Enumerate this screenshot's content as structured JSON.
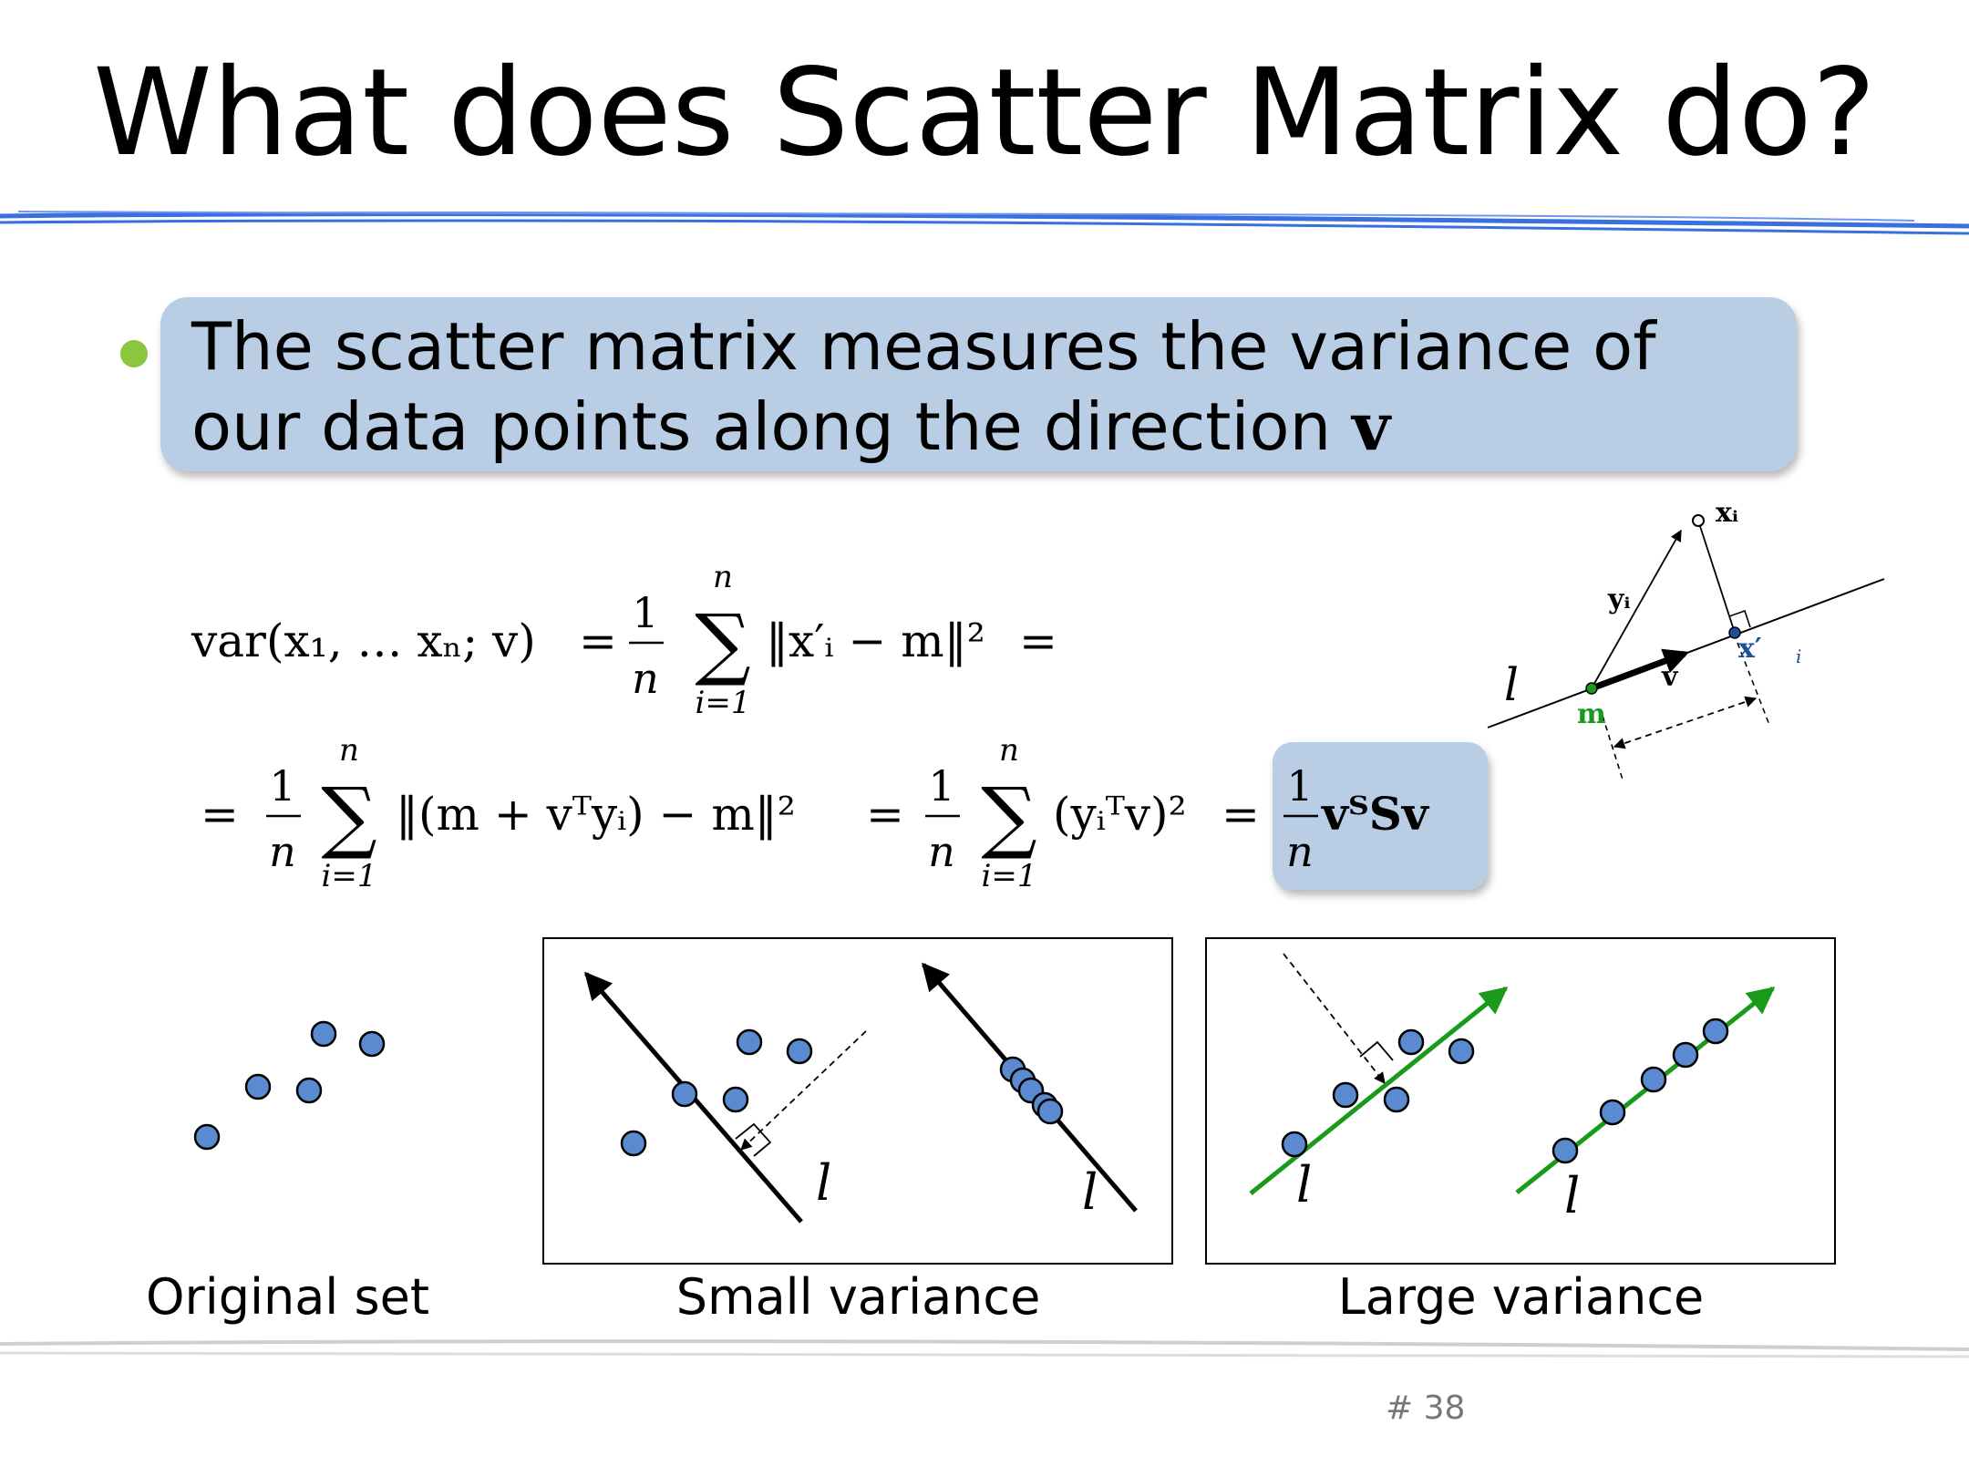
{
  "slide": {
    "title": "What does Scatter Matrix do?",
    "bullet_line1": "The scatter matrix measures the variance of",
    "bullet_line2": "our data points along the direction ",
    "bullet_symbol": "v",
    "page_number": "# 38"
  },
  "equation": {
    "var_lhs": "var(x₁, … xₙ; v)",
    "equals": "=",
    "frac_num": "1",
    "frac_den": "n",
    "sum_top": "n",
    "sum_bottom": "i=1",
    "sum_symbol": "∑",
    "term1": "‖x′ᵢ − m‖²",
    "term2": "‖(m + vᵀyᵢ) − m‖²",
    "term3": "(yᵢᵀv)²",
    "result": "vᵀSv"
  },
  "projection_diagram": {
    "label_xi": "xᵢ",
    "label_yi": "yᵢ",
    "label_v": "v",
    "label_m": "m",
    "label_xprime": "x′",
    "label_xprime_sub": "i",
    "label_l": "l"
  },
  "panels": {
    "original_caption": "Original set",
    "small_caption": "Small variance",
    "large_caption": "Large variance",
    "line_label": "l"
  },
  "colors": {
    "point_fill": "#5a8ad0",
    "line_green": "#1a9a1a",
    "header_rule": "#3a6fe0",
    "bullet_box": "#b9cde5",
    "bullet_dot": "#8cc63e"
  }
}
